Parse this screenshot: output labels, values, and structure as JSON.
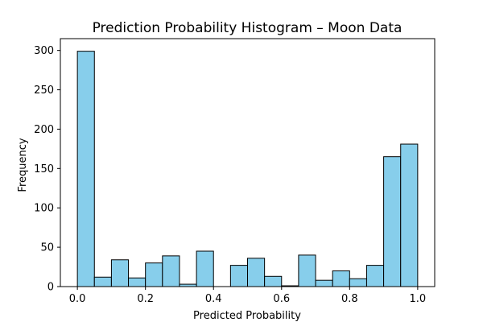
{
  "chart_data": {
    "type": "bar",
    "title": "Prediction Probability Histogram – Moon Data",
    "xlabel": "Predicted Probability",
    "ylabel": "Frequency",
    "xlim": [
      -0.05,
      1.05
    ],
    "ylim": [
      0,
      315
    ],
    "bin_edges": [
      0.0,
      0.05,
      0.1,
      0.15,
      0.2,
      0.25,
      0.3,
      0.35,
      0.4,
      0.45,
      0.5,
      0.55,
      0.6,
      0.65,
      0.7,
      0.75,
      0.8,
      0.85,
      0.9,
      0.95,
      1.0
    ],
    "values": [
      299,
      12,
      34,
      11,
      30,
      39,
      3,
      45,
      0,
      27,
      36,
      13,
      1,
      40,
      8,
      20,
      10,
      27,
      165,
      181
    ],
    "xticks": [
      0.0,
      0.2,
      0.4,
      0.6,
      0.8,
      1.0
    ],
    "xtick_labels": [
      "0.0",
      "0.2",
      "0.4",
      "0.6",
      "0.8",
      "1.0"
    ],
    "yticks": [
      0,
      50,
      100,
      150,
      200,
      250,
      300
    ],
    "ytick_labels": [
      "0",
      "50",
      "100",
      "150",
      "200",
      "250",
      "300"
    ],
    "grid": false,
    "bar_color": "#87ceeb",
    "edge_color": "#000000"
  }
}
